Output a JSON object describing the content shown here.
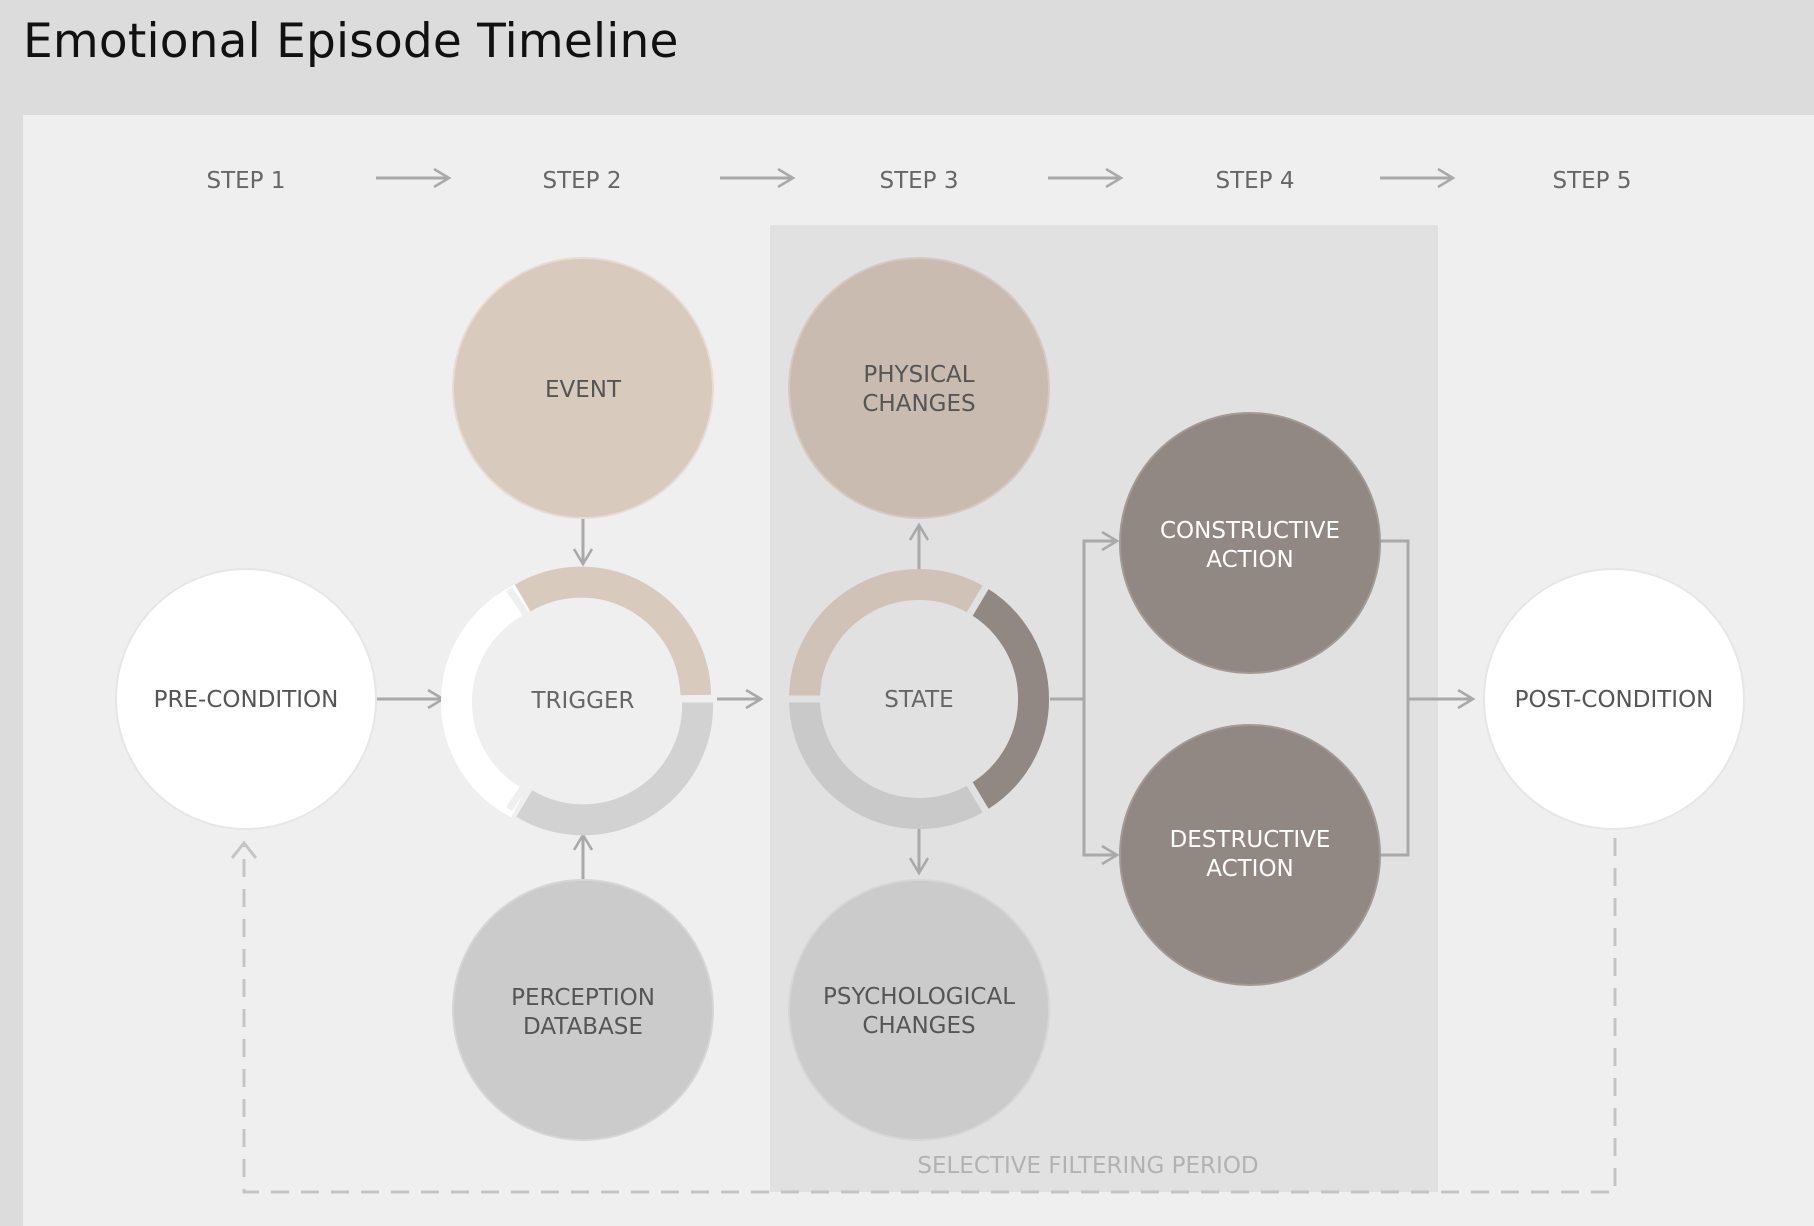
{
  "title": "Emotional Episode Timeline",
  "steps": [
    "STEP 1",
    "STEP 2",
    "STEP 3",
    "STEP 4",
    "STEP 5"
  ],
  "nodes": {
    "precondition": "PRE-CONDITION",
    "event": "EVENT",
    "trigger": "TRIGGER",
    "perception": [
      "PERCEPTION",
      "DATABASE"
    ],
    "physical": [
      "PHYSICAL",
      "CHANGES"
    ],
    "state": "STATE",
    "psychological": [
      "PSYCHOLOGICAL",
      "CHANGES"
    ],
    "constructive": [
      "CONSTRUCTIVE",
      "ACTION"
    ],
    "destructive": [
      "DESTRUCTIVE",
      "ACTION"
    ],
    "postcondition": "POST-CONDITION"
  },
  "period_label": "SELECTIVE FILTERING PERIOD",
  "colors": {
    "event": "#d9cabe",
    "physical": "#c9bbb0",
    "grey_circle": "#cbcbcb",
    "action": "#928883",
    "white": "#ffffff",
    "arrow": "#a9a9a9",
    "filter_band": "#e1e1e1"
  }
}
